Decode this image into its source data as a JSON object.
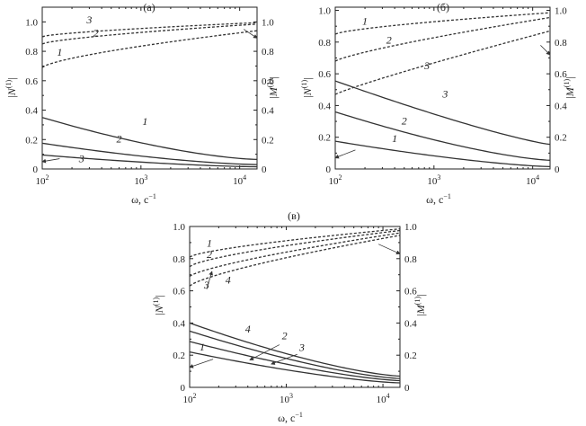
{
  "chart_data": [
    {
      "type": "line",
      "panel_label": "(а)",
      "xlabel": "ω, с",
      "xlabel_sup": "−1",
      "ylabel_left": "|N",
      "ylabel_left_sup": "(1)",
      "ylabel_left_end": "|",
      "ylabel_right": "|M",
      "ylabel_right_sup": "(1)",
      "ylabel_right_end": "|",
      "x_scale": "log",
      "xlim": [
        100,
        15000
      ],
      "ylim": [
        0,
        1.1
      ],
      "x_ticks": [
        {
          "v": 100,
          "base": "10",
          "exp": "2"
        },
        {
          "v": 1000,
          "base": "10",
          "exp": "3"
        },
        {
          "v": 10000,
          "base": "10",
          "exp": "4"
        }
      ],
      "y_ticks": [
        "0",
        "0.2",
        "0.4",
        "0.6",
        "0.8",
        "1.0"
      ],
      "grid": false,
      "series": [
        {
          "name": "1",
          "axis": "left",
          "style": "solid",
          "x": [
            100,
            15000
          ],
          "y0": 0.35,
          "y1": 0.065,
          "curve": 1.5
        },
        {
          "name": "2",
          "axis": "left",
          "style": "solid",
          "x": [
            100,
            15000
          ],
          "y0": 0.175,
          "y1": 0.03,
          "curve": 1.5
        },
        {
          "name": "3",
          "axis": "left",
          "style": "solid",
          "x": [
            100,
            15000
          ],
          "y0": 0.095,
          "y1": 0.015,
          "curve": 1.5
        },
        {
          "name": "1",
          "axis": "right",
          "style": "dashed",
          "x": [
            100,
            15000
          ],
          "y0": 0.69,
          "y1": 0.94,
          "curve": 0.7
        },
        {
          "name": "2",
          "axis": "right",
          "style": "dashed",
          "x": [
            100,
            15000
          ],
          "y0": 0.85,
          "y1": 0.985,
          "curve": 0.7
        },
        {
          "name": "3",
          "axis": "right",
          "style": "dashed",
          "x": [
            100,
            15000
          ],
          "y0": 0.9,
          "y1": 0.995,
          "curve": 0.7
        }
      ],
      "curve_labels": [
        {
          "text": "1",
          "x": 1100,
          "y": 0.3
        },
        {
          "text": "2",
          "x": 600,
          "y": 0.18
        },
        {
          "text": "3",
          "x": 250,
          "y": 0.045
        },
        {
          "text": "1",
          "x": 150,
          "y": 0.77
        },
        {
          "text": "2",
          "x": 350,
          "y": 0.9
        },
        {
          "text": "3",
          "x": 300,
          "y": 0.99
        }
      ],
      "arrows": [
        {
          "from": [
            150,
            0.07
          ],
          "to": [
            100,
            0.05
          ]
        },
        {
          "from": [
            11000,
            0.95
          ],
          "to": [
            15000,
            0.89
          ]
        }
      ]
    },
    {
      "type": "line",
      "panel_label": "(б)",
      "xlabel": "ω, с",
      "xlabel_sup": "−1",
      "ylabel_left": "|N",
      "ylabel_left_sup": "(1)",
      "ylabel_left_end": "|",
      "ylabel_right": "|M",
      "ylabel_right_sup": "(1)",
      "ylabel_right_end": "|",
      "x_scale": "log",
      "xlim": [
        100,
        15000
      ],
      "ylim": [
        0,
        1.02
      ],
      "x_ticks": [
        {
          "v": 100,
          "base": "10",
          "exp": "2"
        },
        {
          "v": 1000,
          "base": "10",
          "exp": "3"
        },
        {
          "v": 10000,
          "base": "10",
          "exp": "4"
        }
      ],
      "y_ticks": [
        "0",
        "0.2",
        "0.4",
        "0.6",
        "0.8",
        "1.0"
      ],
      "grid": false,
      "series": [
        {
          "name": "1",
          "axis": "left",
          "style": "solid",
          "x": [
            100,
            15000
          ],
          "y0": 0.175,
          "y1": 0.015,
          "curve": 1.4
        },
        {
          "name": "2",
          "axis": "left",
          "style": "solid",
          "x": [
            100,
            15000
          ],
          "y0": 0.36,
          "y1": 0.055,
          "curve": 1.4
        },
        {
          "name": "3",
          "axis": "left",
          "style": "solid",
          "x": [
            100,
            15000
          ],
          "y0": 0.555,
          "y1": 0.155,
          "curve": 1.2
        },
        {
          "name": "1",
          "axis": "right",
          "style": "dashed",
          "x": [
            100,
            15000
          ],
          "y0": 0.85,
          "y1": 0.985,
          "curve": 0.7
        },
        {
          "name": "2",
          "axis": "right",
          "style": "dashed",
          "x": [
            100,
            15000
          ],
          "y0": 0.68,
          "y1": 0.955,
          "curve": 0.8
        },
        {
          "name": "3",
          "axis": "right",
          "style": "dashed",
          "x": [
            100,
            15000
          ],
          "y0": 0.47,
          "y1": 0.87,
          "curve": 0.9
        }
      ],
      "curve_labels": [
        {
          "text": "1",
          "x": 400,
          "y": 0.17
        },
        {
          "text": "2",
          "x": 500,
          "y": 0.28
        },
        {
          "text": "3",
          "x": 1300,
          "y": 0.45
        },
        {
          "text": "1",
          "x": 200,
          "y": 0.91
        },
        {
          "text": "2",
          "x": 350,
          "y": 0.79
        },
        {
          "text": "3",
          "x": 850,
          "y": 0.63
        }
      ],
      "arrows": [
        {
          "from": [
            160,
            0.12
          ],
          "to": [
            100,
            0.07
          ]
        },
        {
          "from": [
            12000,
            0.78
          ],
          "to": [
            15000,
            0.72
          ]
        }
      ]
    },
    {
      "type": "line",
      "panel_label": "(в)",
      "xlabel": "ω, с",
      "xlabel_sup": "−1",
      "ylabel_left": "|N",
      "ylabel_left_sup": "(1)",
      "ylabel_left_end": "|",
      "ylabel_right": "|M",
      "ylabel_right_sup": "(1)",
      "ylabel_right_end": "|",
      "x_scale": "log",
      "xlim": [
        100,
        15000
      ],
      "ylim": [
        0,
        1.0
      ],
      "x_ticks": [
        {
          "v": 100,
          "base": "10",
          "exp": "2"
        },
        {
          "v": 1000,
          "base": "10",
          "exp": "3"
        },
        {
          "v": 10000,
          "base": "10",
          "exp": "4"
        }
      ],
      "y_ticks": [
        "0",
        "0.2",
        "0.4",
        "0.6",
        "0.8",
        "1.0"
      ],
      "grid": false,
      "series": [
        {
          "name": "1",
          "axis": "left",
          "style": "solid",
          "x": [
            100,
            15000
          ],
          "y0": 0.22,
          "y1": 0.028,
          "curve": 1.4
        },
        {
          "name": "2",
          "axis": "left",
          "style": "solid",
          "x": [
            100,
            15000
          ],
          "y0": 0.285,
          "y1": 0.042,
          "curve": 1.4
        },
        {
          "name": "3",
          "axis": "left",
          "style": "solid",
          "x": [
            100,
            15000
          ],
          "y0": 0.35,
          "y1": 0.055,
          "curve": 1.4
        },
        {
          "name": "4",
          "axis": "left",
          "style": "solid",
          "x": [
            100,
            15000
          ],
          "y0": 0.4,
          "y1": 0.07,
          "curve": 1.4
        },
        {
          "name": "1",
          "axis": "right",
          "style": "dashed",
          "x": [
            100,
            15000
          ],
          "y0": 0.81,
          "y1": 0.985,
          "curve": 0.7
        },
        {
          "name": "2",
          "axis": "right",
          "style": "dashed",
          "x": [
            100,
            15000
          ],
          "y0": 0.75,
          "y1": 0.975,
          "curve": 0.7
        },
        {
          "name": "3",
          "axis": "right",
          "style": "dashed",
          "x": [
            100,
            15000
          ],
          "y0": 0.63,
          "y1": 0.945,
          "curve": 0.75
        },
        {
          "name": "4",
          "axis": "right",
          "style": "dashed",
          "x": [
            100,
            15000
          ],
          "y0": 0.69,
          "y1": 0.96,
          "curve": 0.75
        }
      ],
      "curve_labels": [
        {
          "text": "1",
          "x": 135,
          "y": 0.23
        },
        {
          "text": "2",
          "x": 960,
          "y": 0.3
        },
        {
          "text": "3",
          "x": 1450,
          "y": 0.225
        },
        {
          "text": "4",
          "x": 400,
          "y": 0.34
        },
        {
          "text": "1",
          "x": 160,
          "y": 0.875
        },
        {
          "text": "2",
          "x": 160,
          "y": 0.805
        },
        {
          "text": "3",
          "x": 150,
          "y": 0.615
        },
        {
          "text": "4",
          "x": 250,
          "y": 0.645
        }
      ],
      "arrows": [
        {
          "from": [
            175,
            0.175
          ],
          "to": [
            100,
            0.125
          ]
        },
        {
          "from": [
            850,
            0.265
          ],
          "to": [
            420,
            0.17
          ]
        },
        {
          "from": [
            1300,
            0.205
          ],
          "to": [
            700,
            0.145
          ]
        },
        {
          "from": [
            150,
            0.61
          ],
          "to": [
            170,
            0.72
          ]
        },
        {
          "from": [
            9000,
            0.89
          ],
          "to": [
            15000,
            0.83
          ]
        }
      ]
    }
  ]
}
